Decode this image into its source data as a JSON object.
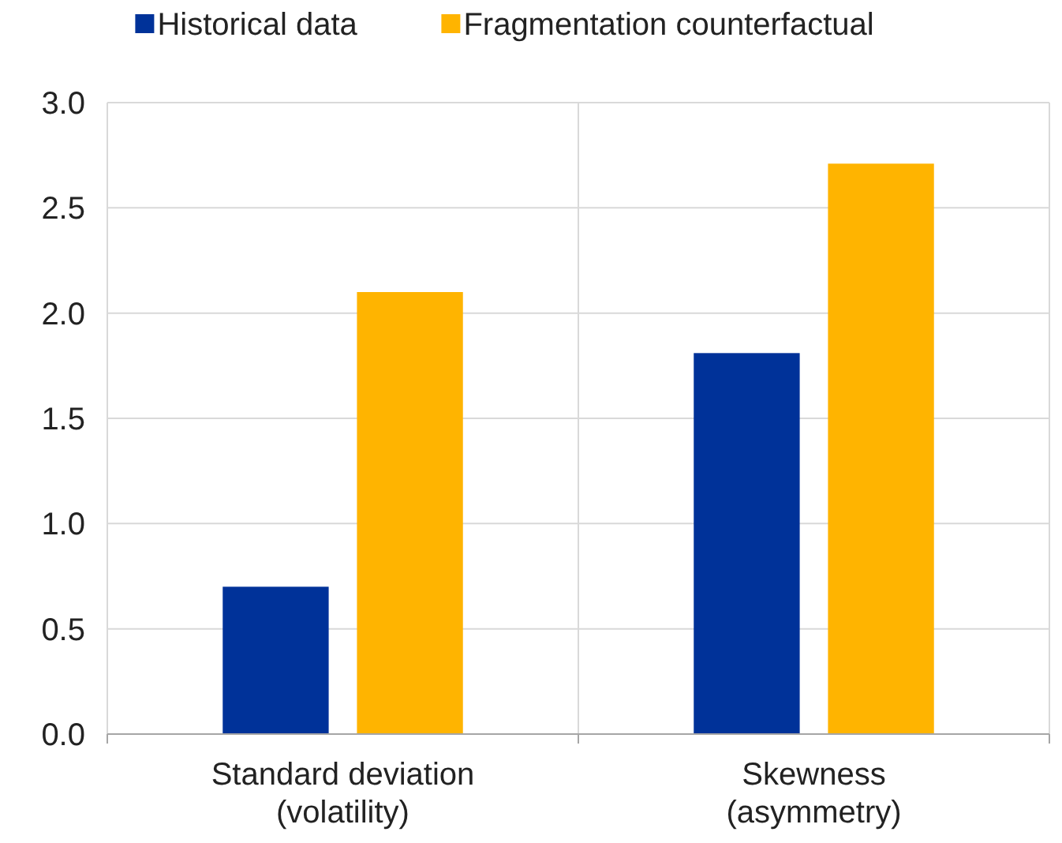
{
  "chart_data": {
    "type": "bar",
    "categories": [
      "Standard deviation\n(volatility)",
      "Skewness\n(asymmetry)"
    ],
    "series": [
      {
        "name": "Historical data",
        "color": "#003299",
        "values": [
          0.7,
          1.81
        ]
      },
      {
        "name": "Fragmentation counterfactual",
        "color": "#ffb400",
        "values": [
          2.1,
          2.71
        ]
      }
    ],
    "ylim": [
      0,
      3
    ],
    "yticks": [
      {
        "value": 0,
        "label": "0.0"
      },
      {
        "value": 0.5,
        "label": "0.5"
      },
      {
        "value": 1,
        "label": "1.0"
      },
      {
        "value": 1.5,
        "label": "1.5"
      },
      {
        "value": 2,
        "label": "2.0"
      },
      {
        "value": 2.5,
        "label": "2.5"
      },
      {
        "value": 3,
        "label": "3.0"
      }
    ],
    "grid": true,
    "legend": "top"
  }
}
